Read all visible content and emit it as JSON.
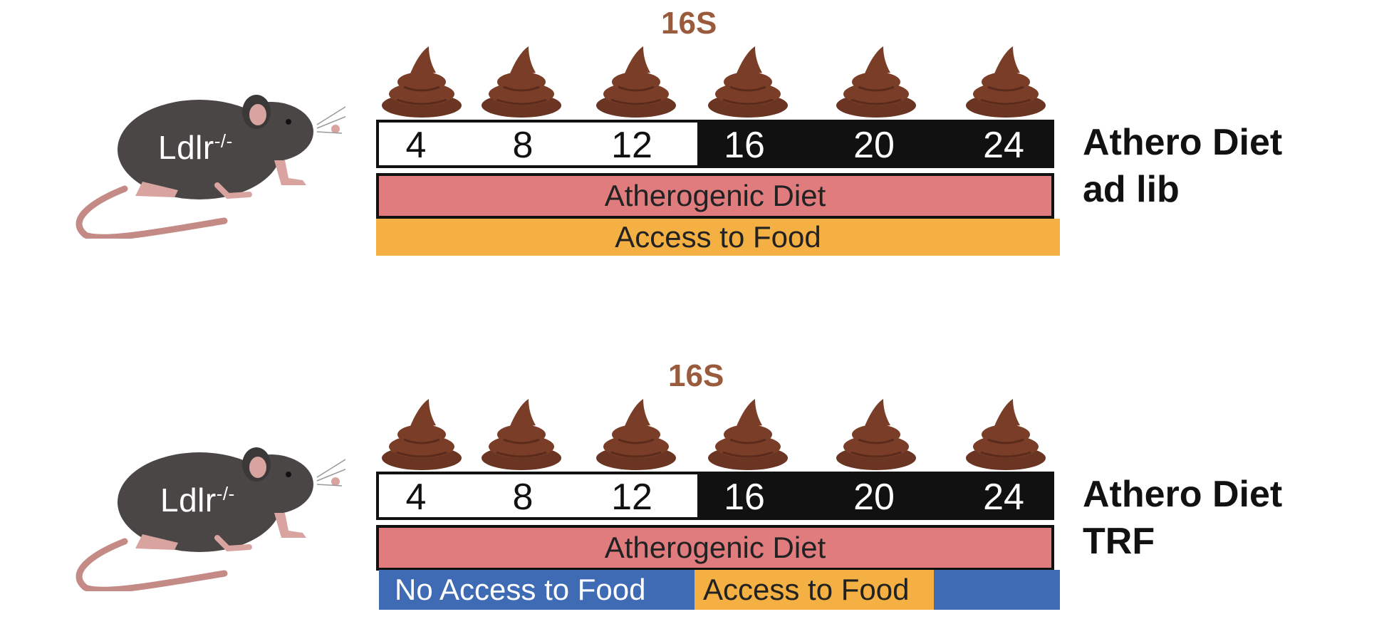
{
  "colors": {
    "label_16s": "#9a5b3c",
    "atherogenic_diet": "#e07c7e",
    "access_to_food": "#f4b042",
    "no_access_to_food": "#3e6bb4",
    "light_phase": "#ffffff",
    "dark_phase": "#111111",
    "stool": "#6b3523"
  },
  "panels": [
    {
      "mouse_label": "Ldlr",
      "mouse_label_sup": "-/-",
      "sample_label": "16S",
      "time_points": [
        "4",
        "8",
        "12",
        "16",
        "20",
        "24"
      ],
      "diet_label": "Atherogenic Diet",
      "access_label": "Access to Food",
      "title_line1": "Athero Diet",
      "title_line2": "ad lib",
      "stool_icon": "stool-icon"
    },
    {
      "mouse_label": "Ldlr",
      "mouse_label_sup": "-/-",
      "sample_label": "16S",
      "time_points": [
        "4",
        "8",
        "12",
        "16",
        "20",
        "24"
      ],
      "diet_label": "Atherogenic Diet",
      "no_access_label": "No Access to Food",
      "access_label": "Access to Food",
      "title_line1": "Athero Diet",
      "title_line2": "TRF",
      "stool_icon": "stool-icon"
    }
  ]
}
